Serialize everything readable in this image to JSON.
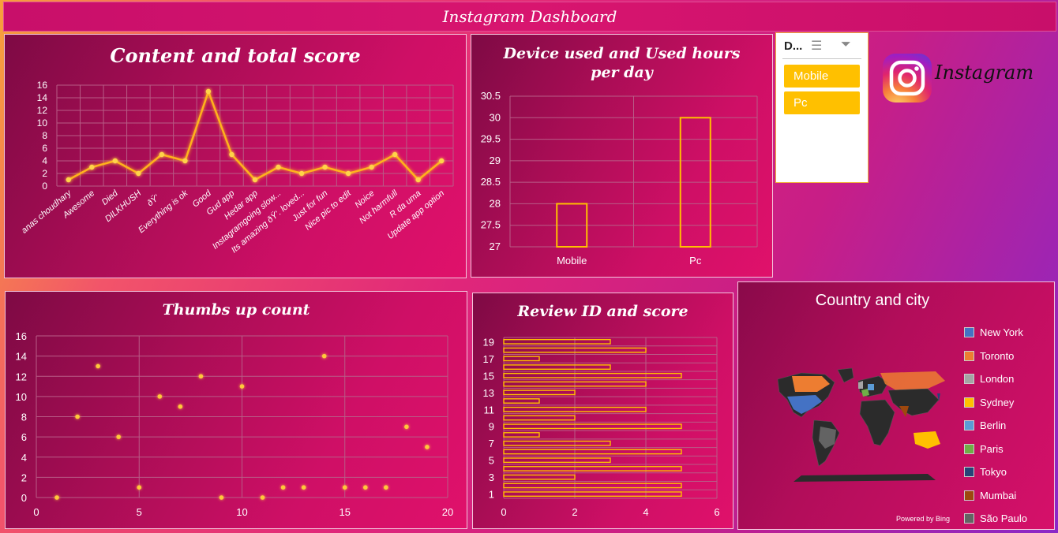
{
  "dashboard": {
    "title": "Instagram Dashboard"
  },
  "brand": {
    "name": "Instagram",
    "logo_icon": "instagram-logo-icon"
  },
  "slicer": {
    "header": "D...",
    "multi_select_icon": "multi-select-icon",
    "clear_filter_icon": "clear-filter-icon",
    "items": [
      "Mobile",
      "Pc"
    ]
  },
  "colors": {
    "accent": "#ffc000",
    "line": "#ffb21a",
    "panel_dark": "#7e0a44",
    "panel_light": "#e0116b"
  },
  "chart_data": [
    {
      "id": "content",
      "type": "line",
      "title": "Content and total score",
      "categories": [
        "anas choudhary",
        "Awesome",
        "Died",
        "DILKHUSH",
        "ðŸ‘",
        "Everything is ok",
        "Good",
        "Gud app",
        "Hedar app",
        "Instagramgoing slow...",
        "Its amazing ðŸ‘. loved...",
        "Just for fun",
        "Nice pic to edit",
        "Noice",
        "Not harmfull",
        "R da uma",
        "Update app option"
      ],
      "values": [
        1,
        3,
        4,
        2,
        5,
        4,
        15,
        5,
        1,
        3,
        2,
        3,
        2,
        3,
        5,
        1,
        4
      ],
      "ylim": [
        0,
        16
      ],
      "yticks": [
        "0",
        "2",
        "4",
        "6",
        "8",
        "10",
        "12",
        "14",
        "16"
      ],
      "grid": true
    },
    {
      "id": "device",
      "type": "bar",
      "title": "Device used and Used hours per day",
      "categories": [
        "Mobile",
        "Pc"
      ],
      "values": [
        28,
        30
      ],
      "ylim": [
        27,
        30.5
      ],
      "yticks": [
        "27",
        "27.5",
        "28",
        "28.5",
        "29",
        "29.5",
        "30",
        "30.5"
      ],
      "grid": true
    },
    {
      "id": "thumbs",
      "type": "scatter",
      "title": "Thumbs up count",
      "x": [
        1,
        2,
        3,
        4,
        5,
        6,
        7,
        8,
        9,
        10,
        11,
        12,
        13,
        14,
        15,
        16,
        17,
        18,
        19
      ],
      "y": [
        0,
        8,
        13,
        6,
        1,
        10,
        9,
        12,
        0,
        11,
        0,
        1,
        1,
        14,
        1,
        1,
        1,
        7,
        5
      ],
      "xlim": [
        0,
        20
      ],
      "ylim": [
        0,
        16
      ],
      "xticks": [
        "0",
        "5",
        "10",
        "15",
        "20"
      ],
      "yticks": [
        "0",
        "2",
        "4",
        "6",
        "8",
        "10",
        "12",
        "14",
        "16"
      ],
      "grid": true
    },
    {
      "id": "review",
      "type": "bar",
      "orientation": "horizontal",
      "title": "Review ID and score",
      "categories": [
        "1",
        "2",
        "3",
        "4",
        "5",
        "6",
        "7",
        "8",
        "9",
        "10",
        "11",
        "12",
        "13",
        "14",
        "15",
        "16",
        "17",
        "18",
        "19"
      ],
      "values": [
        5,
        5,
        2,
        5,
        3,
        5,
        3,
        1,
        5,
        2,
        4,
        1,
        2,
        4,
        5,
        3,
        1,
        4,
        3
      ],
      "yticks": [
        "1",
        "3",
        "5",
        "7",
        "9",
        "11",
        "13",
        "15",
        "17",
        "19"
      ],
      "xlim": [
        0,
        6
      ],
      "xticks": [
        "0",
        "2",
        "4",
        "6"
      ],
      "grid": true
    },
    {
      "id": "map",
      "type": "map",
      "title": "Country and city",
      "legend": [
        {
          "label": "New York",
          "color": "#4472c4"
        },
        {
          "label": "Toronto",
          "color": "#ed7d31"
        },
        {
          "label": "London",
          "color": "#a5a5a5"
        },
        {
          "label": "Sydney",
          "color": "#ffc000"
        },
        {
          "label": "Berlin",
          "color": "#5b9bd5"
        },
        {
          "label": "Paris",
          "color": "#70ad47"
        },
        {
          "label": "Tokyo",
          "color": "#264478"
        },
        {
          "label": "Mumbai",
          "color": "#9e480e"
        },
        {
          "label": "São Paulo",
          "color": "#636363"
        }
      ],
      "attribution": "Powered by Bing"
    }
  ]
}
